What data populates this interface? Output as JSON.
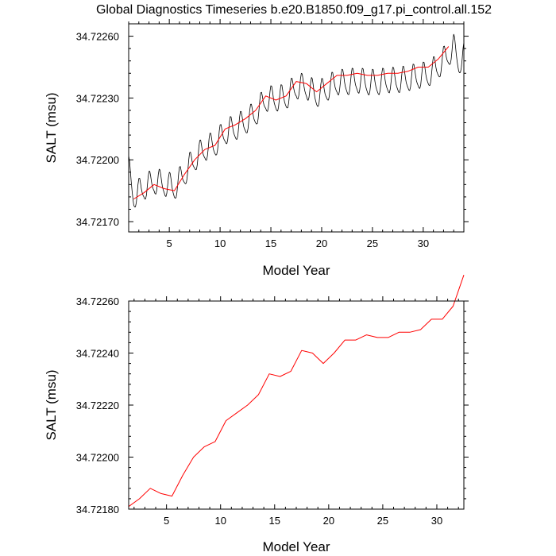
{
  "title": "Global Diagnostics Timeseries b.e20.B1850.f09_g17.pi_control.all.152",
  "colors": {
    "monthly_line": "#000000",
    "annual_line": "#ff0000",
    "axes": "#000000"
  },
  "chart_data": [
    {
      "type": "line",
      "xlabel": "Model Year",
      "ylabel": "SALT (msu)",
      "xlim": [
        1,
        34
      ],
      "ylim": [
        34.72165,
        34.72266
      ],
      "xticks": [
        5,
        10,
        15,
        20,
        25,
        30
      ],
      "xtick_labels": [
        "5",
        "10",
        "15",
        "20",
        "25",
        "30"
      ],
      "yticks": [
        34.7217,
        34.722,
        34.7223,
        34.7226
      ],
      "ytick_labels": [
        "34.72170",
        "34.72200",
        "34.72230",
        "34.72260"
      ],
      "grid": false,
      "series": [
        {
          "role": "monthly",
          "color": "#000000",
          "baseline": {
            "x": [
              1.0,
              1.5,
              2.5,
              3.5,
              4.5,
              5.5,
              6.5,
              7.5,
              8.5,
              9.5,
              10.5,
              11.5,
              12.5,
              13.5,
              14.5,
              15.5,
              16.5,
              17.5,
              18.5,
              19.5,
              20.5,
              21.5,
              22.5,
              23.5,
              24.5,
              25.5,
              26.5,
              27.5,
              28.5,
              29.5,
              30.5,
              31.5,
              32.5,
              33.0,
              33.5,
              34.0
            ],
            "y": [
              34.72195,
              34.72182,
              34.72186,
              34.72189,
              34.72188,
              34.72186,
              34.72193,
              34.722,
              34.72205,
              34.72207,
              34.72213,
              34.72215,
              34.72218,
              34.72222,
              34.72229,
              34.72229,
              34.7223,
              34.72235,
              34.72235,
              34.72231,
              34.72234,
              34.72237,
              34.72237,
              34.72238,
              34.72237,
              34.72237,
              34.72238,
              34.72238,
              34.72239,
              34.7224,
              34.72241,
              34.72245,
              34.72251,
              34.72254,
              34.72247,
              34.7225
            ]
          },
          "seasonal_amplitude": 0.00012,
          "seasonal_points_per_year": 12
        },
        {
          "role": "annual",
          "color": "#ff0000",
          "x": [
            1.5,
            2.5,
            3.5,
            4.5,
            5.5,
            6.5,
            7.5,
            8.5,
            9.5,
            10.5,
            11.5,
            12.5,
            13.5,
            14.5,
            15.5,
            16.5,
            17.5,
            18.5,
            19.5,
            20.5,
            21.5,
            22.5,
            23.5,
            24.5,
            25.5,
            26.5,
            27.5,
            28.5,
            29.5,
            30.5,
            31.5,
            32.5
          ],
          "y": [
            34.72181,
            34.72184,
            34.72188,
            34.72186,
            34.72185,
            34.72193,
            34.722,
            34.72205,
            34.72207,
            34.72215,
            34.72217,
            34.7222,
            34.72224,
            34.72231,
            34.72229,
            34.72231,
            34.72238,
            34.72237,
            34.72233,
            34.72237,
            34.72241,
            34.72241,
            34.72242,
            34.72241,
            34.72241,
            34.72242,
            34.72242,
            34.72243,
            34.72245,
            34.72245,
            34.72249,
            34.72255
          ]
        }
      ]
    },
    {
      "type": "line",
      "xlabel": "Model Year",
      "ylabel": "SALT (msu)",
      "xlim": [
        1.5,
        32.5
      ],
      "ylim": [
        34.7218,
        34.7226
      ],
      "xticks": [
        5,
        10,
        15,
        20,
        25,
        30
      ],
      "xtick_labels": [
        "5",
        "10",
        "15",
        "20",
        "25",
        "30"
      ],
      "yticks": [
        34.7218,
        34.722,
        34.7222,
        34.7224,
        34.7226
      ],
      "ytick_labels": [
        "34.72180",
        "34.72200",
        "34.72220",
        "34.72240",
        "34.72260"
      ],
      "grid": false,
      "series": [
        {
          "role": "annual",
          "color": "#ff0000",
          "x": [
            1.5,
            2.5,
            3.5,
            4.5,
            5.5,
            6.5,
            7.5,
            8.5,
            9.5,
            10.5,
            11.5,
            12.5,
            13.5,
            14.5,
            15.5,
            16.5,
            17.5,
            18.5,
            19.5,
            20.5,
            21.5,
            22.5,
            23.5,
            24.5,
            25.5,
            26.5,
            27.5,
            28.5,
            29.5,
            30.5,
            31.5,
            32.5
          ],
          "y": [
            34.72181,
            34.72184,
            34.72188,
            34.72186,
            34.72185,
            34.72193,
            34.722,
            34.72204,
            34.72206,
            34.72214,
            34.72217,
            34.7222,
            34.72224,
            34.72232,
            34.72231,
            34.72233,
            34.72241,
            34.7224,
            34.72236,
            34.7224,
            34.72245,
            34.72245,
            34.72247,
            34.72246,
            34.72246,
            34.72248,
            34.72248,
            34.72249,
            34.72253,
            34.72253,
            34.72258,
            34.7227
          ]
        }
      ]
    }
  ]
}
